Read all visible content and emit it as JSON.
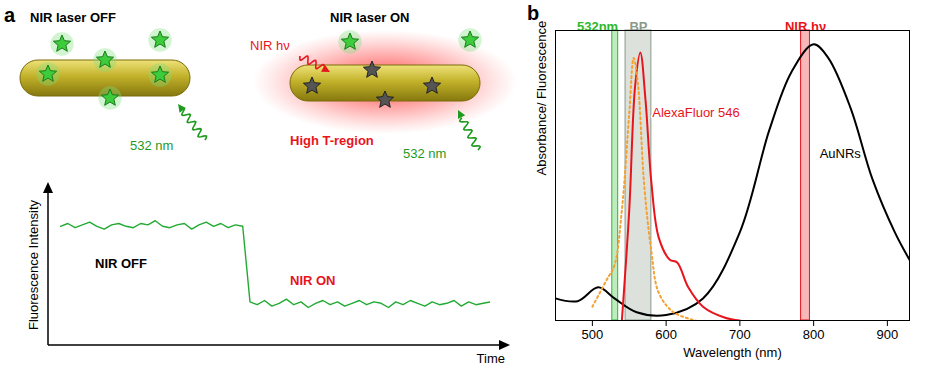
{
  "diagram": {
    "panel_label": "a",
    "left": {
      "title": "NIR laser OFF",
      "excitation": "532 nm"
    },
    "right": {
      "title": "NIR laser ON",
      "irradiation": "NIR hν",
      "region": "High T-region",
      "excitation": "532 nm"
    },
    "trace": {
      "y_label": "Fluorescence Intensity",
      "x_label": "Time",
      "states": [
        "NIR OFF",
        "NIR ON"
      ],
      "ylim": [
        0,
        1
      ],
      "values": [
        0.78,
        0.8,
        0.77,
        0.79,
        0.81,
        0.78,
        0.76,
        0.79,
        0.8,
        0.78,
        0.77,
        0.8,
        0.79,
        0.82,
        0.78,
        0.77,
        0.79,
        0.8,
        0.76,
        0.79,
        0.81,
        0.78,
        0.8,
        0.77,
        0.79,
        0.78,
        0.24,
        0.22,
        0.25,
        0.21,
        0.23,
        0.26,
        0.22,
        0.24,
        0.2,
        0.23,
        0.25,
        0.22,
        0.24,
        0.21,
        0.23,
        0.25,
        0.22,
        0.24,
        0.23,
        0.2,
        0.24,
        0.22,
        0.25,
        0.23,
        0.21,
        0.24,
        0.22,
        0.23,
        0.25,
        0.21,
        0.24,
        0.22,
        0.23,
        0.24
      ]
    }
  },
  "chart_data": {
    "type": "line",
    "panel_label": "b",
    "x_label": "Wavelength (nm)",
    "y_label": "Absorbance/ Fluorescence",
    "xlim": [
      450,
      930
    ],
    "xticks": [
      500,
      600,
      700,
      800,
      900
    ],
    "ylim": [
      0,
      1.05
    ],
    "tick_labels": "x",
    "bands": [
      {
        "label": "532nm",
        "x1": 527,
        "x2": 535,
        "color": "#2db82d"
      },
      {
        "label": "BP",
        "x1": 545,
        "x2": 580,
        "color": "#8a9a8a"
      },
      {
        "label": "NIR hν",
        "x1": 783,
        "x2": 795,
        "color": "#e8141c"
      }
    ],
    "series": [
      {
        "name": "AuNRs",
        "color": "#000000",
        "line_style": "solid",
        "x": [
          450,
          480,
          508,
          530,
          560,
          600,
          650,
          700,
          740,
          770,
          800,
          820,
          850,
          880,
          910,
          930
        ],
        "values": [
          0.08,
          0.07,
          0.12,
          0.08,
          0.03,
          0.02,
          0.08,
          0.32,
          0.69,
          0.9,
          1.0,
          0.95,
          0.77,
          0.51,
          0.32,
          0.22
        ]
      },
      {
        "name": "AlexaFluor 546",
        "color": "#e8141c",
        "line_style": "solid",
        "x": [
          540,
          550,
          558,
          565,
          572,
          580,
          590,
          605,
          615,
          630,
          650,
          680,
          700
        ],
        "values": [
          0.0,
          0.4,
          0.85,
          0.97,
          0.8,
          0.5,
          0.3,
          0.22,
          0.21,
          0.12,
          0.05,
          0.01,
          0.0
        ]
      },
      {
        "color": "#f5a032",
        "line_style": "dotted",
        "x": [
          500,
          520,
          530,
          540,
          550,
          556,
          562,
          570,
          580,
          590,
          610,
          640
        ],
        "values": [
          0.05,
          0.15,
          0.2,
          0.4,
          0.75,
          0.95,
          0.85,
          0.5,
          0.25,
          0.1,
          0.03,
          0.0
        ]
      }
    ]
  }
}
